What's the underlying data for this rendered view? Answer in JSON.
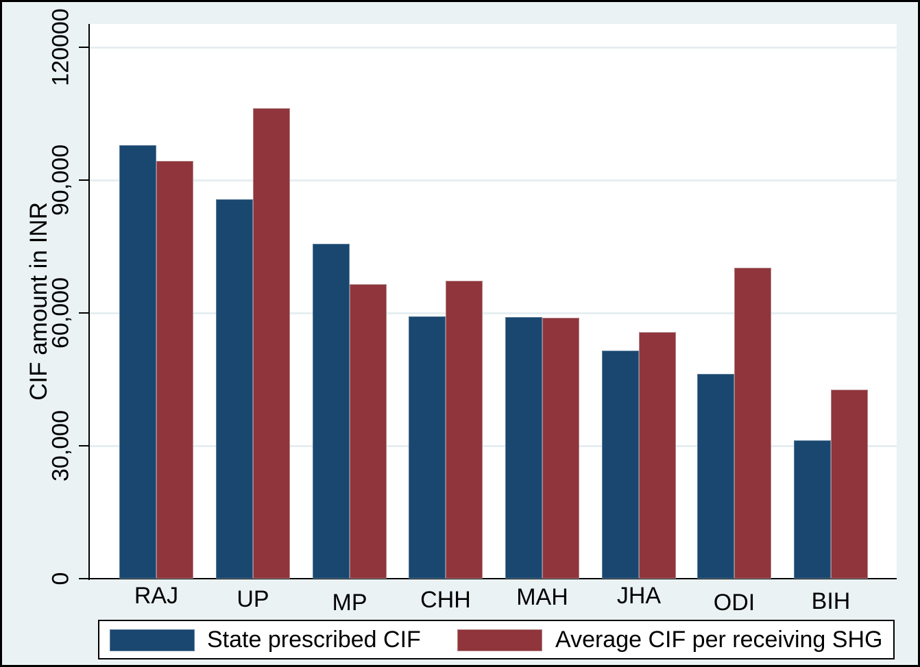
{
  "chart_data": {
    "type": "bar",
    "title": "",
    "categories": [
      "RAJ",
      "UP",
      "MP",
      "CHH",
      "MAH",
      "JHA",
      "ODI",
      "BIH"
    ],
    "series": [
      {
        "name": "State prescribed CIF",
        "color": "#1a476f",
        "border_color": "#5d7f9d",
        "values": [
          97900,
          85700,
          75600,
          59200,
          59100,
          51500,
          46200,
          31200
        ]
      },
      {
        "name": "Average CIF per receiving SHG",
        "color": "#90353b",
        "border_color": "#b2858a",
        "values": [
          94300,
          106200,
          66500,
          67300,
          58900,
          55700,
          70200,
          42700
        ]
      }
    ],
    "xlabel": "",
    "ylabel": "CIF amount in INR",
    "ylim": [
      0,
      125000
    ],
    "yticks": {
      "values": [
        0,
        30000,
        60000,
        90000,
        120000
      ],
      "labels": [
        "0",
        "30,000",
        "60,000",
        "90,000",
        "120000"
      ]
    },
    "grid": true,
    "legend_position": "bottom"
  },
  "colors": {
    "background": "#eaf2f3",
    "plot_background": "#ffffff",
    "gridline": "#e6eef1",
    "axis": "#000000",
    "legend_background": "#ffffff"
  }
}
